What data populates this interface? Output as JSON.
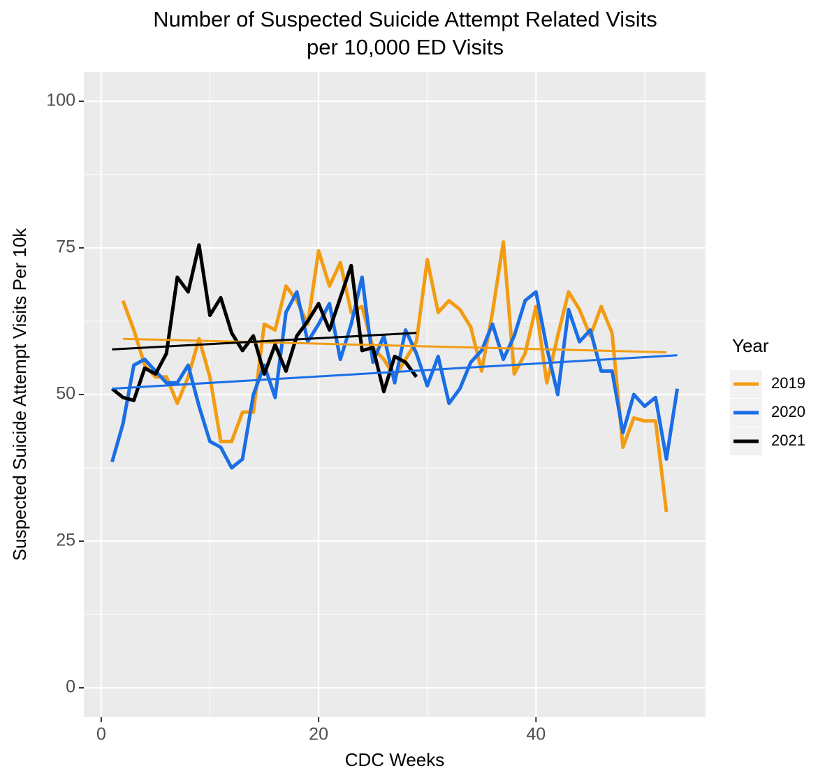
{
  "chart_data": {
    "type": "line",
    "title": [
      "Number of Suspected Suicide Attempt Related Visits",
      "per 10,000 ED Visits"
    ],
    "x_label": "CDC Weeks",
    "y_label": "Suspected Suicide Attempt Visits Per 10k",
    "legend_title": "Year",
    "legend_position": "right",
    "xlim": [
      -1.6,
      55.6
    ],
    "ylim": [
      -5,
      105
    ],
    "xticks": [
      0,
      20,
      40
    ],
    "yticks": [
      0,
      25,
      50,
      75,
      100
    ],
    "x_minor_grid": [
      10,
      30,
      50
    ],
    "y_minor_grid": [
      12.5,
      37.5,
      62.5,
      87.5
    ],
    "grid": true,
    "series": [
      {
        "name": "2019",
        "color": "#f39c12",
        "x": [
          2,
          3,
          4,
          5,
          6,
          7,
          8,
          9,
          10,
          11,
          12,
          13,
          14,
          15,
          16,
          17,
          18,
          19,
          20,
          21,
          22,
          23,
          24,
          25,
          26,
          27,
          28,
          29,
          30,
          31,
          32,
          33,
          34,
          35,
          36,
          37,
          38,
          39,
          40,
          41,
          42,
          43,
          44,
          45,
          46,
          47,
          48,
          49,
          50,
          51,
          52
        ],
        "values": [
          66,
          61,
          55,
          53,
          53,
          48.5,
          53,
          59.5,
          53,
          42,
          42,
          47,
          47,
          62,
          61,
          68.5,
          66,
          62,
          74.5,
          68.5,
          72.5,
          64,
          65,
          58,
          56,
          53,
          56,
          59,
          73,
          64,
          66,
          64.5,
          61.5,
          54,
          64,
          76,
          53.5,
          57,
          65,
          52,
          60,
          67.5,
          64.5,
          60,
          65,
          60.5,
          41,
          46,
          45.5,
          45.5,
          30
        ],
        "trend_x": [
          2,
          52
        ],
        "trend": [
          59.5,
          57.2
        ]
      },
      {
        "name": "2020",
        "color": "#1a6ee6",
        "x": [
          1,
          2,
          3,
          4,
          5,
          6,
          7,
          8,
          9,
          10,
          11,
          12,
          13,
          14,
          15,
          16,
          17,
          18,
          19,
          20,
          21,
          22,
          23,
          24,
          25,
          26,
          27,
          28,
          29,
          30,
          31,
          32,
          33,
          34,
          35,
          36,
          37,
          38,
          39,
          40,
          41,
          42,
          43,
          44,
          45,
          46,
          47,
          48,
          49,
          50,
          51,
          52,
          53
        ],
        "values": [
          38.5,
          45,
          55,
          56,
          54,
          52,
          52,
          55,
          48,
          42,
          41,
          37.5,
          39,
          50,
          55,
          49.5,
          64,
          67.5,
          59,
          62,
          65.5,
          56,
          62,
          70,
          55.5,
          60,
          52,
          61,
          57,
          51.5,
          56.5,
          48.5,
          51,
          55.5,
          57.5,
          62,
          56,
          60,
          66,
          67.5,
          58,
          50,
          64.5,
          59,
          61,
          54,
          54,
          43.5,
          50,
          48,
          49.5,
          39,
          51
        ],
        "trend_x": [
          1,
          53
        ],
        "trend": [
          51,
          56.7
        ]
      },
      {
        "name": "2021",
        "color": "#000000",
        "x": [
          1,
          2,
          3,
          4,
          5,
          6,
          7,
          8,
          9,
          10,
          11,
          12,
          13,
          14,
          15,
          16,
          17,
          18,
          19,
          20,
          21,
          22,
          23,
          24,
          25,
          26,
          27,
          28,
          29
        ],
        "values": [
          51,
          49.5,
          49,
          54.5,
          53.5,
          57,
          70,
          67.5,
          75.5,
          63.5,
          66.5,
          60.5,
          57.5,
          60,
          53.5,
          58.5,
          54,
          60,
          62.5,
          65.5,
          61,
          66.5,
          72,
          57.5,
          58,
          50.5,
          56.5,
          55.5,
          53
        ],
        "trend_x": [
          1,
          29
        ],
        "trend": [
          57.7,
          60.5
        ]
      }
    ]
  }
}
